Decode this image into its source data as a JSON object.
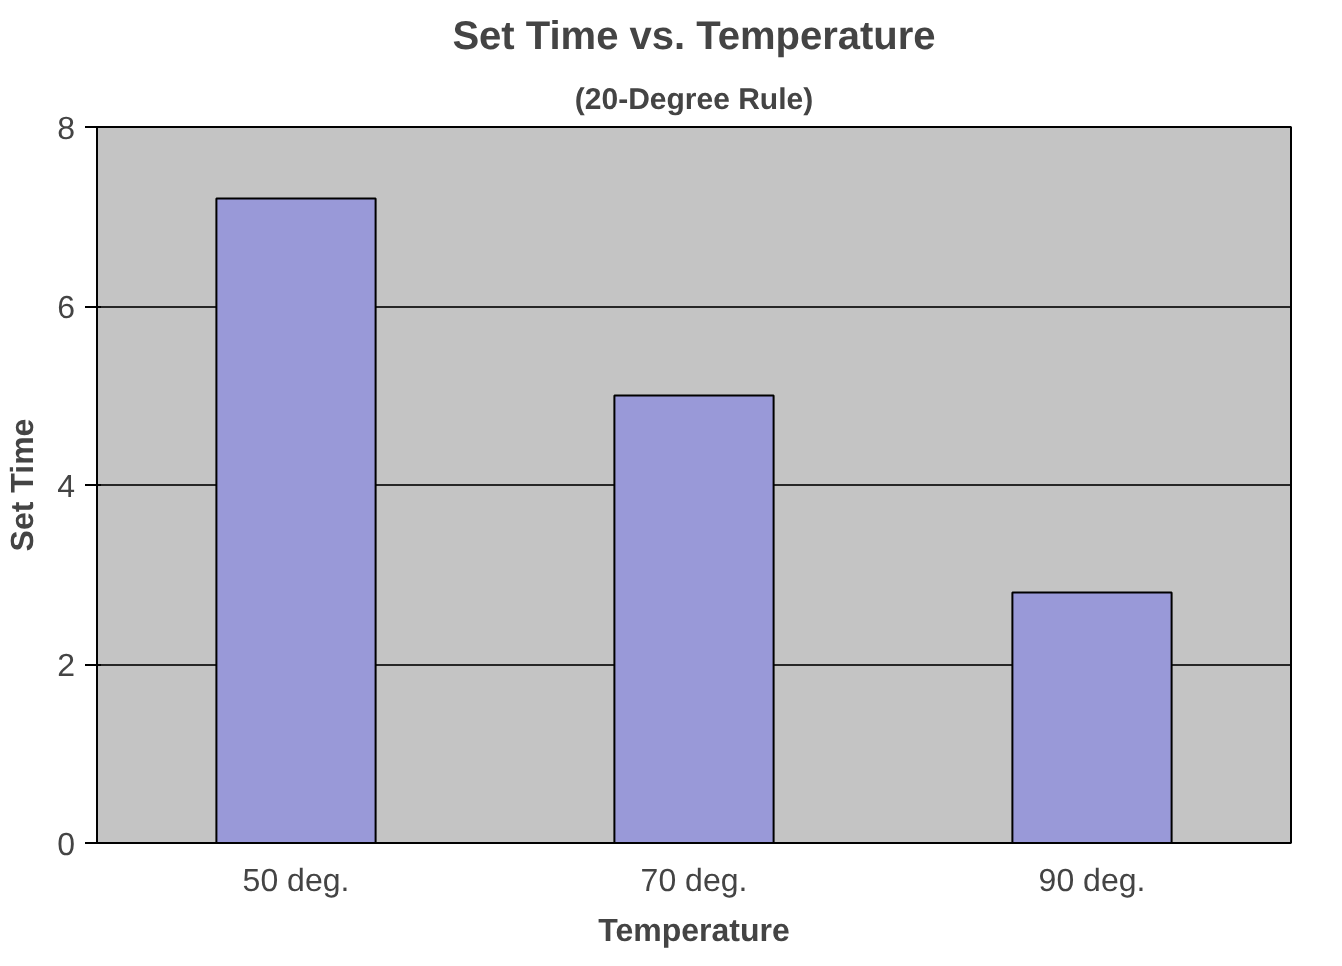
{
  "chart_data": {
    "type": "bar",
    "title": "Set Time vs. Temperature",
    "subtitle": "(20-Degree Rule)",
    "xlabel": "Temperature",
    "ylabel": "Set Time",
    "categories": [
      "50 deg.",
      "70 deg.",
      "90 deg."
    ],
    "values": [
      7.2,
      5.0,
      2.8
    ],
    "color": "#9999d8",
    "ylim": [
      0,
      8
    ],
    "yticks": [
      0,
      2,
      4,
      6,
      8
    ],
    "grid": "y"
  }
}
